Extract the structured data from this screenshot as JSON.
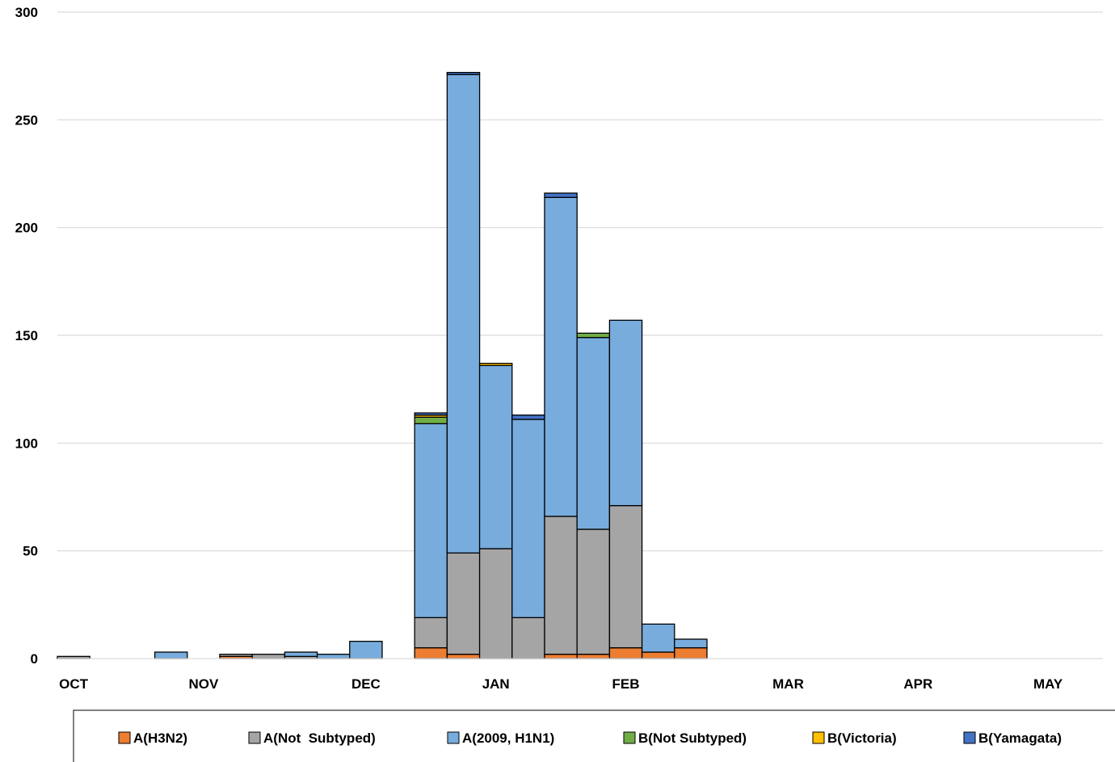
{
  "chart_data": {
    "type": "bar",
    "stacked": true,
    "title": "",
    "xlabel": "",
    "ylabel": "",
    "ylim": [
      0,
      300
    ],
    "yticks": [
      "0",
      "50",
      "100",
      "150",
      "200",
      "250",
      "300"
    ],
    "grid": true,
    "legend_position": "bottom",
    "month_labels": [
      {
        "label": "OCT",
        "week_index": 0
      },
      {
        "label": "NOV",
        "week_index": 4
      },
      {
        "label": "DEC",
        "week_index": 9
      },
      {
        "label": "JAN",
        "week_index": 13
      },
      {
        "label": "FEB",
        "week_index": 17
      },
      {
        "label": "MAR",
        "week_index": 22
      },
      {
        "label": "APR",
        "week_index": 26
      },
      {
        "label": "MAY",
        "week_index": 30
      }
    ],
    "weeks": 32,
    "series": [
      {
        "name": "A(H3N2)",
        "color": "#ED7D31",
        "values": [
          0,
          0,
          0,
          0,
          0,
          1,
          0,
          0,
          0,
          0,
          0,
          5,
          2,
          0,
          0,
          2,
          2,
          5,
          3,
          5,
          0,
          0,
          0,
          0,
          0,
          0,
          0,
          0,
          0,
          0,
          0,
          0
        ]
      },
      {
        "name": "A(Not  Subtyped)",
        "color": "#A5A5A5",
        "values": [
          1,
          0,
          0,
          0,
          0,
          1,
          2,
          1,
          0,
          0,
          0,
          14,
          47,
          51,
          19,
          64,
          58,
          66,
          0,
          0,
          0,
          0,
          0,
          0,
          0,
          0,
          0,
          0,
          0,
          0,
          0,
          0
        ]
      },
      {
        "name": "A(2009, H1N1)",
        "color": "#77ACDD",
        "values": [
          0,
          0,
          0,
          3,
          0,
          0,
          0,
          2,
          2,
          8,
          0,
          90,
          222,
          85,
          92,
          148,
          89,
          86,
          13,
          4,
          0,
          0,
          0,
          0,
          0,
          0,
          0,
          0,
          0,
          0,
          0,
          0
        ]
      },
      {
        "name": "B(Not Subtyped)",
        "color": "#70AD47",
        "values": [
          0,
          0,
          0,
          0,
          0,
          0,
          0,
          0,
          0,
          0,
          0,
          3,
          0,
          0,
          0,
          0,
          2,
          0,
          0,
          0,
          0,
          0,
          0,
          0,
          0,
          0,
          0,
          0,
          0,
          0,
          0,
          0
        ]
      },
      {
        "name": "B(Victoria)",
        "color": "#FFC000",
        "values": [
          0,
          0,
          0,
          0,
          0,
          0,
          0,
          0,
          0,
          0,
          0,
          1,
          0,
          1,
          0,
          0,
          0,
          0,
          0,
          0,
          0,
          0,
          0,
          0,
          0,
          0,
          0,
          0,
          0,
          0,
          0,
          0
        ]
      },
      {
        "name": "B(Yamagata)",
        "color": "#4472C4",
        "values": [
          0,
          0,
          0,
          0,
          0,
          0,
          0,
          0,
          0,
          0,
          0,
          1,
          1,
          0,
          2,
          2,
          0,
          0,
          0,
          0,
          0,
          0,
          0,
          0,
          0,
          0,
          0,
          0,
          0,
          0,
          0,
          0
        ]
      }
    ]
  }
}
